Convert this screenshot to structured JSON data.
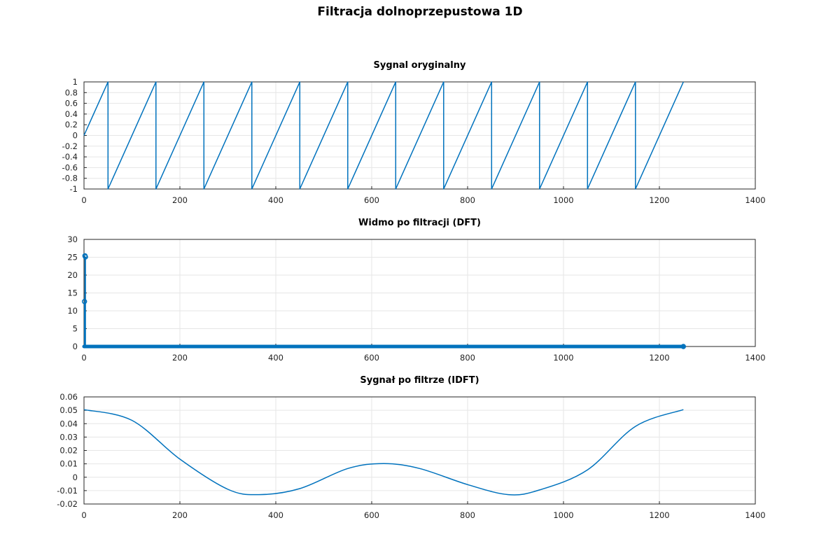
{
  "figure": {
    "title": "Filtracja dolnoprzepustowa 1D"
  },
  "colors": {
    "series": "#0072bd",
    "axes": "#262626",
    "grid": "#e6e6e6"
  },
  "chart_data": [
    {
      "type": "line",
      "title": "Sygnal oryginalny",
      "xlabel": "",
      "ylabel": "",
      "xlim": [
        0,
        1400
      ],
      "ylim": [
        -1,
        1
      ],
      "xticks": [
        0,
        200,
        400,
        600,
        800,
        1000,
        1200,
        1400
      ],
      "yticks": [
        -1,
        -0.8,
        -0.6,
        -0.4,
        -0.2,
        0,
        0.2,
        0.4,
        0.6,
        0.8,
        1
      ],
      "grid": true,
      "series": [
        {
          "shape": "sawtooth",
          "period": 100,
          "start_x": 0,
          "start_y": 0,
          "min": -1,
          "max": 1,
          "end_x": 1250,
          "points": [
            [
              0,
              0
            ],
            [
              50,
              1
            ],
            [
              50,
              -1
            ],
            [
              150,
              1
            ],
            [
              150,
              -1
            ],
            [
              250,
              1
            ],
            [
              250,
              -1
            ],
            [
              350,
              1
            ],
            [
              350,
              -1
            ],
            [
              450,
              1
            ],
            [
              450,
              -1
            ],
            [
              550,
              1
            ],
            [
              550,
              -1
            ],
            [
              650,
              1
            ],
            [
              650,
              -1
            ],
            [
              750,
              1
            ],
            [
              750,
              -1
            ],
            [
              850,
              1
            ],
            [
              850,
              -1
            ],
            [
              950,
              1
            ],
            [
              950,
              -1
            ],
            [
              1050,
              1
            ],
            [
              1050,
              -1
            ],
            [
              1150,
              1
            ],
            [
              1150,
              -1
            ],
            [
              1250,
              1
            ]
          ]
        }
      ]
    },
    {
      "type": "stem",
      "title": "Widmo po filtracji (DFT)",
      "xlabel": "",
      "ylabel": "",
      "xlim": [
        0,
        1400
      ],
      "ylim": [
        0,
        30
      ],
      "xticks": [
        0,
        200,
        400,
        600,
        800,
        1000,
        1200,
        1400
      ],
      "yticks": [
        0,
        5,
        10,
        15,
        20,
        25,
        30
      ],
      "grid": true,
      "series": [
        {
          "points": [
            [
              1,
              12.6
            ],
            [
              2,
              25.4
            ],
            [
              3,
              25.1
            ]
          ],
          "rest_value": 0,
          "x_range": [
            0,
            1250
          ]
        }
      ]
    },
    {
      "type": "line",
      "title": "Sygnał po filtrze (IDFT)",
      "xlabel": "",
      "ylabel": "",
      "xlim": [
        0,
        1400
      ],
      "ylim": [
        -0.02,
        0.06
      ],
      "xticks": [
        0,
        200,
        400,
        600,
        800,
        1000,
        1200,
        1400
      ],
      "yticks": [
        -0.02,
        -0.01,
        0,
        0.01,
        0.02,
        0.03,
        0.04,
        0.05,
        0.06
      ],
      "grid": true,
      "series": [
        {
          "x_range": [
            0,
            1250
          ],
          "points": [
            [
              0,
              0.0505
            ],
            [
              100,
              0.0425
            ],
            [
              200,
              0.0135
            ],
            [
              300,
              -0.009
            ],
            [
              365,
              -0.013
            ],
            [
              450,
              -0.0085
            ],
            [
              550,
              0.0065
            ],
            [
              625,
              0.0102
            ],
            [
              700,
              0.0065
            ],
            [
              800,
              -0.0055
            ],
            [
              885,
              -0.013
            ],
            [
              950,
              -0.0095
            ],
            [
              1050,
              0.0055
            ],
            [
              1150,
              0.038
            ],
            [
              1250,
              0.0505
            ]
          ]
        }
      ]
    }
  ]
}
